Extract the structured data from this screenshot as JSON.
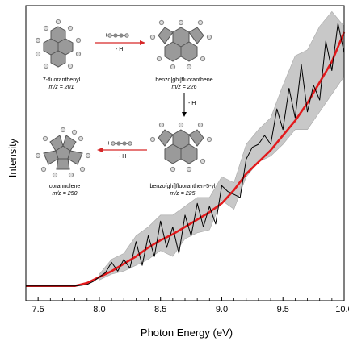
{
  "chart_data": {
    "type": "line",
    "xlabel": "Photon Energy (eV)",
    "ylabel": "Intensity",
    "xlim": [
      7.4,
      10.0
    ],
    "ylim": [
      0,
      1.0
    ],
    "x_ticks": [
      "7.5",
      "8.0",
      "8.5",
      "9.0",
      "9.5",
      "10.0"
    ],
    "x_tick_values": [
      7.5,
      8.0,
      8.5,
      9.0,
      9.5,
      10.0
    ],
    "grid": false,
    "colors": {
      "measured": "#000000",
      "band": "#c8c8c8",
      "fit": "#e31a1c"
    },
    "series": [
      {
        "role": "measured",
        "x": [
          7.4,
          7.5,
          7.6,
          7.7,
          7.8,
          7.85,
          7.9,
          7.95,
          8.0,
          8.05,
          8.1,
          8.15,
          8.2,
          8.25,
          8.3,
          8.35,
          8.4,
          8.45,
          8.5,
          8.55,
          8.6,
          8.65,
          8.7,
          8.75,
          8.8,
          8.85,
          8.9,
          8.95,
          9.0,
          9.05,
          9.1,
          9.15,
          9.2,
          9.25,
          9.3,
          9.35,
          9.4,
          9.45,
          9.5,
          9.55,
          9.6,
          9.65,
          9.7,
          9.75,
          9.8,
          9.85,
          9.9,
          9.95,
          10.0
        ],
        "y": [
          0.05,
          0.05,
          0.05,
          0.05,
          0.05,
          0.052,
          0.055,
          0.065,
          0.08,
          0.095,
          0.13,
          0.1,
          0.14,
          0.11,
          0.2,
          0.12,
          0.22,
          0.15,
          0.27,
          0.18,
          0.25,
          0.16,
          0.29,
          0.22,
          0.33,
          0.25,
          0.32,
          0.26,
          0.39,
          0.37,
          0.36,
          0.35,
          0.48,
          0.52,
          0.53,
          0.56,
          0.53,
          0.65,
          0.58,
          0.72,
          0.62,
          0.8,
          0.64,
          0.73,
          0.68,
          0.88,
          0.78,
          0.94,
          0.84
        ]
      },
      {
        "role": "fit",
        "x": [
          7.4,
          7.5,
          7.6,
          7.7,
          7.8,
          7.85,
          7.9,
          8.0,
          8.1,
          8.2,
          8.3,
          8.4,
          8.5,
          8.6,
          8.7,
          8.8,
          8.9,
          9.0,
          9.1,
          9.2,
          9.3,
          9.4,
          9.5,
          9.6,
          9.7,
          9.8,
          9.9,
          10.0
        ],
        "y": [
          0.05,
          0.05,
          0.05,
          0.05,
          0.05,
          0.055,
          0.06,
          0.08,
          0.1,
          0.125,
          0.15,
          0.18,
          0.205,
          0.225,
          0.25,
          0.275,
          0.3,
          0.33,
          0.375,
          0.43,
          0.47,
          0.51,
          0.56,
          0.61,
          0.67,
          0.74,
          0.81,
          0.91
        ]
      }
    ],
    "band": {
      "x": [
        8.0,
        8.1,
        8.2,
        8.3,
        8.4,
        8.5,
        8.6,
        8.7,
        8.8,
        8.9,
        9.0,
        9.1,
        9.2,
        9.3,
        9.4,
        9.5,
        9.6,
        9.7,
        9.8,
        9.9,
        10.0
      ],
      "upper": [
        0.09,
        0.14,
        0.16,
        0.22,
        0.25,
        0.29,
        0.29,
        0.32,
        0.35,
        0.35,
        0.42,
        0.4,
        0.53,
        0.58,
        0.62,
        0.73,
        0.83,
        0.85,
        0.93,
        0.98,
        0.93
      ],
      "lower": [
        0.07,
        0.09,
        0.1,
        0.12,
        0.14,
        0.17,
        0.15,
        0.21,
        0.23,
        0.24,
        0.34,
        0.31,
        0.42,
        0.47,
        0.49,
        0.53,
        0.58,
        0.58,
        0.64,
        0.7,
        0.76
      ]
    },
    "inset": {
      "molecules": [
        {
          "name": "7-fluoranthenyl",
          "mz": "m/z = 201"
        },
        {
          "name": "benzo[ghi]fluoranthene",
          "mz": "m/z = 226"
        },
        {
          "name": "benzo[ghi]fluoranthen-5-yl",
          "mz": "m/z = 225"
        },
        {
          "name": "corannulene",
          "mz": "m/z = 250"
        }
      ],
      "arrows": [
        "+",
        "- H",
        "- H",
        "+",
        "- H"
      ]
    }
  }
}
